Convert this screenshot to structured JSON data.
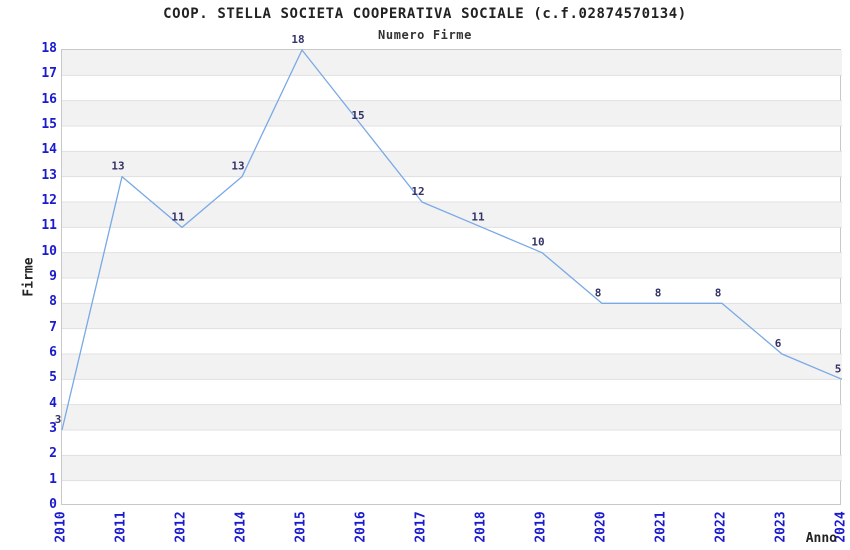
{
  "chart": {
    "title": "COOP. STELLA SOCIETA COOPERATIVA SOCIALE (c.f.02874570134)",
    "subtitle": "Numero Firme",
    "xlabel": "Anno",
    "ylabel": "Firme"
  },
  "chart_data": {
    "type": "line",
    "title": "COOP. STELLA SOCIETA COOPERATIVA SOCIALE (c.f.02874570134)",
    "subtitle": "Numero Firme",
    "xlabel": "Anno",
    "ylabel": "Firme",
    "categories": [
      "2010",
      "2011",
      "2012",
      "2014",
      "2015",
      "2016",
      "2017",
      "2018",
      "2019",
      "2020",
      "2021",
      "2022",
      "2023",
      "2024"
    ],
    "values": [
      3,
      13,
      11,
      13,
      18,
      15,
      12,
      11,
      10,
      8,
      8,
      8,
      6,
      5
    ],
    "ylim": [
      0,
      18
    ],
    "ytick_step": 1,
    "grid": true,
    "banded_background": true,
    "legend_position": "none",
    "colors": {
      "line": "#79a9e6",
      "tick_label": "#1a1ace",
      "data_label": "#333366",
      "band": "#f2f2f2",
      "gridline": "#e0e0e0",
      "plot_border": "#c8c8c8",
      "title_text": "#222222",
      "background": "#ffffff"
    }
  }
}
